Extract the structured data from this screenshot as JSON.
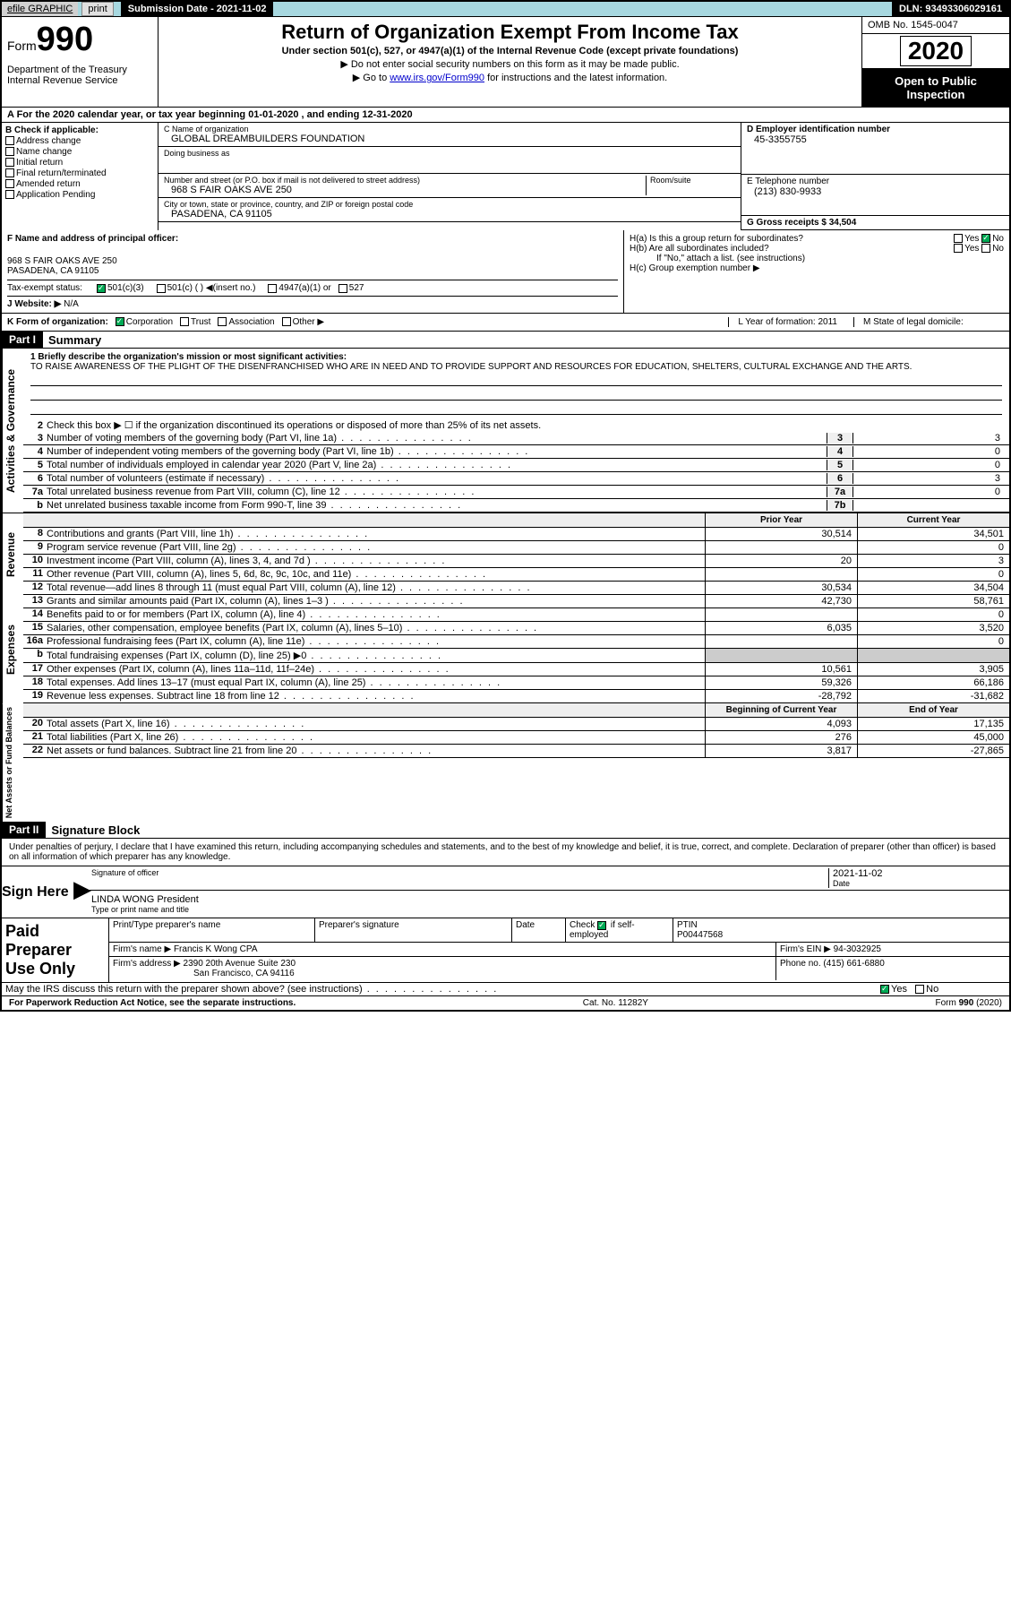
{
  "topbar": {
    "efile": "efile GRAPHIC",
    "print_btn": "print",
    "sub_date_label": "Submission Date - 2021-11-02",
    "dln": "DLN: 93493306029161"
  },
  "header": {
    "form_word": "Form",
    "form_num": "990",
    "dept": "Department of the Treasury\nInternal Revenue Service",
    "title": "Return of Organization Exempt From Income Tax",
    "subtitle": "Under section 501(c), 527, or 4947(a)(1) of the Internal Revenue Code (except private foundations)",
    "note1": "▶ Do not enter social security numbers on this form as it may be made public.",
    "note2_pre": "▶ Go to ",
    "note2_link": "www.irs.gov/Form990",
    "note2_post": " for instructions and the latest information.",
    "omb": "OMB No. 1545-0047",
    "year": "2020",
    "open": "Open to Public Inspection"
  },
  "line_a": "A For the 2020 calendar year, or tax year beginning 01-01-2020   , and ending 12-31-2020",
  "section_b": {
    "label": "B Check if applicable:",
    "addr": "Address change",
    "name": "Name change",
    "initial": "Initial return",
    "final": "Final return/terminated",
    "amended": "Amended return",
    "pending": "Application Pending"
  },
  "section_c": {
    "name_label": "C Name of organization",
    "name_val": "GLOBAL DREAMBUILDERS FOUNDATION",
    "dba_label": "Doing business as",
    "addr_label": "Number and street (or P.O. box if mail is not delivered to street address)",
    "room_label": "Room/suite",
    "addr_val": "968 S FAIR OAKS AVE 250",
    "city_label": "City or town, state or province, country, and ZIP or foreign postal code",
    "city_val": "PASADENA, CA  91105"
  },
  "section_d": {
    "label": "D Employer identification number",
    "val": "45-3355755"
  },
  "section_e": {
    "label": "E Telephone number",
    "val": "(213) 830-9933"
  },
  "section_g": {
    "label": "G Gross receipts $ 34,504"
  },
  "principal": {
    "f_label": "F  Name and address of principal officer:",
    "addr1": "968 S FAIR OAKS AVE 250",
    "addr2": "PASADENA, CA  91105",
    "tax_status": "Tax-exempt status:",
    "c3": "501(c)(3)",
    "c_blank": "501(c) (  ) ◀(insert no.)",
    "a1": "4947(a)(1) or",
    "s527": "527",
    "website_label": "J   Website: ▶",
    "website_val": "N/A",
    "ha": "H(a)  Is this a group return for subordinates?",
    "hb": "H(b)  Are all subordinates included?",
    "hb_note": "If \"No,\" attach a list. (see instructions)",
    "hc": "H(c)  Group exemption number ▶",
    "yes": "Yes",
    "no": "No"
  },
  "line_k": {
    "label": "K Form of organization:",
    "corp": "Corporation",
    "trust": "Trust",
    "assoc": "Association",
    "other": "Other ▶",
    "l_label": "L Year of formation: 2011",
    "m_label": "M State of legal domicile:"
  },
  "part1": {
    "hdr": "Part I",
    "title": "Summary"
  },
  "mission": {
    "q1": "1   Briefly describe the organization's mission or most significant activities:",
    "text": "TO RAISE AWARENESS OF THE PLIGHT OF THE DISENFRANCHISED WHO ARE IN NEED AND TO PROVIDE SUPPORT AND RESOURCES FOR EDUCATION, SHELTERS, CULTURAL EXCHANGE AND THE ARTS."
  },
  "activities": {
    "vert": "Activities & Governance",
    "q2": "Check this box ▶ ☐ if the organization discontinued its operations or disposed of more than 25% of its net assets.",
    "rows": [
      {
        "n": "3",
        "t": "Number of voting members of the governing body (Part VI, line 1a)",
        "box": "3",
        "v": "3"
      },
      {
        "n": "4",
        "t": "Number of independent voting members of the governing body (Part VI, line 1b)",
        "box": "4",
        "v": "0"
      },
      {
        "n": "5",
        "t": "Total number of individuals employed in calendar year 2020 (Part V, line 2a)",
        "box": "5",
        "v": "0"
      },
      {
        "n": "6",
        "t": "Total number of volunteers (estimate if necessary)",
        "box": "6",
        "v": "3"
      },
      {
        "n": "7a",
        "t": "Total unrelated business revenue from Part VIII, column (C), line 12",
        "box": "7a",
        "v": "0"
      },
      {
        "n": "b",
        "t": "Net unrelated business taxable income from Form 990-T, line 39",
        "box": "7b",
        "v": ""
      }
    ]
  },
  "col_hdrs": {
    "py": "Prior Year",
    "cy": "Current Year"
  },
  "revenue": {
    "vert": "Revenue",
    "rows": [
      {
        "n": "8",
        "t": "Contributions and grants (Part VIII, line 1h)",
        "py": "30,514",
        "cy": "34,501"
      },
      {
        "n": "9",
        "t": "Program service revenue (Part VIII, line 2g)",
        "py": "",
        "cy": "0"
      },
      {
        "n": "10",
        "t": "Investment income (Part VIII, column (A), lines 3, 4, and 7d )",
        "py": "20",
        "cy": "3"
      },
      {
        "n": "11",
        "t": "Other revenue (Part VIII, column (A), lines 5, 6d, 8c, 9c, 10c, and 11e)",
        "py": "",
        "cy": "0"
      },
      {
        "n": "12",
        "t": "Total revenue—add lines 8 through 11 (must equal Part VIII, column (A), line 12)",
        "py": "30,534",
        "cy": "34,504"
      }
    ]
  },
  "expenses": {
    "vert": "Expenses",
    "rows": [
      {
        "n": "13",
        "t": "Grants and similar amounts paid (Part IX, column (A), lines 1–3 )",
        "py": "42,730",
        "cy": "58,761"
      },
      {
        "n": "14",
        "t": "Benefits paid to or for members (Part IX, column (A), line 4)",
        "py": "",
        "cy": "0"
      },
      {
        "n": "15",
        "t": "Salaries, other compensation, employee benefits (Part IX, column (A), lines 5–10)",
        "py": "6,035",
        "cy": "3,520"
      },
      {
        "n": "16a",
        "t": "Professional fundraising fees (Part IX, column (A), line 11e)",
        "py": "",
        "cy": "0"
      },
      {
        "n": "b",
        "t": "Total fundraising expenses (Part IX, column (D), line 25) ▶0",
        "py": "shade",
        "cy": "shade"
      },
      {
        "n": "17",
        "t": "Other expenses (Part IX, column (A), lines 11a–11d, 11f–24e)",
        "py": "10,561",
        "cy": "3,905"
      },
      {
        "n": "18",
        "t": "Total expenses. Add lines 13–17 (must equal Part IX, column (A), line 25)",
        "py": "59,326",
        "cy": "66,186"
      },
      {
        "n": "19",
        "t": "Revenue less expenses. Subtract line 18 from line 12",
        "py": "-28,792",
        "cy": "-31,682"
      }
    ]
  },
  "net_hdrs": {
    "py": "Beginning of Current Year",
    "cy": "End of Year"
  },
  "net": {
    "vert": "Net Assets or Fund Balances",
    "rows": [
      {
        "n": "20",
        "t": "Total assets (Part X, line 16)",
        "py": "4,093",
        "cy": "17,135"
      },
      {
        "n": "21",
        "t": "Total liabilities (Part X, line 26)",
        "py": "276",
        "cy": "45,000"
      },
      {
        "n": "22",
        "t": "Net assets or fund balances. Subtract line 21 from line 20",
        "py": "3,817",
        "cy": "-27,865"
      }
    ]
  },
  "part2": {
    "hdr": "Part II",
    "title": "Signature Block"
  },
  "sig": {
    "decl": "Under penalties of perjury, I declare that I have examined this return, including accompanying schedules and statements, and to the best of my knowledge and belief, it is true, correct, and complete. Declaration of preparer (other than officer) is based on all information of which preparer has any knowledge.",
    "sign_here": "Sign Here",
    "sig_officer": "Signature of officer",
    "date": "Date",
    "date_val": "2021-11-02",
    "name": "LINDA WONG President",
    "name_sub": "Type or print name and title"
  },
  "prep": {
    "label": "Paid Preparer Use Only",
    "h1": "Print/Type preparer's name",
    "h2": "Preparer's signature",
    "h3": "Date",
    "h4_pre": "Check",
    "h4_post": "if self-employed",
    "h5": "PTIN",
    "ptin": "P00447568",
    "firm_name_l": "Firm's name      ▶",
    "firm_name": "Francis K Wong CPA",
    "firm_ein_l": "Firm's EIN ▶",
    "firm_ein": "94-3032925",
    "firm_addr_l": "Firm's address ▶",
    "firm_addr1": "2390 20th Avenue Suite 230",
    "firm_addr2": "San Francisco, CA  94116",
    "phone_l": "Phone no.",
    "phone": "(415) 661-6880"
  },
  "discuss": "May the IRS discuss this return with the preparer shown above? (see instructions)",
  "footer": {
    "left": "For Paperwork Reduction Act Notice, see the separate instructions.",
    "mid": "Cat. No. 11282Y",
    "right": "Form 990 (2020)"
  }
}
